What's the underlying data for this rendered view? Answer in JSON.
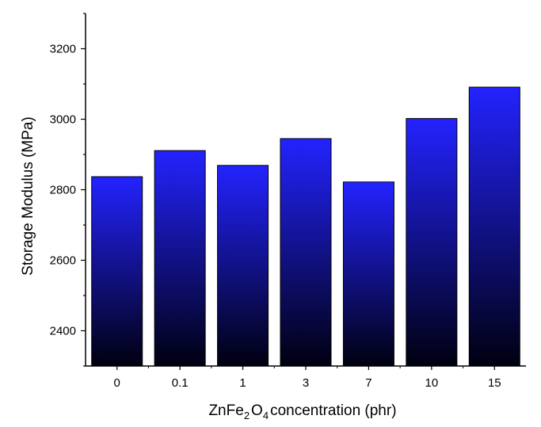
{
  "chart_data": {
    "type": "bar",
    "categories": [
      "0",
      "0.1",
      "1",
      "3",
      "7",
      "10",
      "15"
    ],
    "values": [
      2837,
      2911,
      2869,
      2945,
      2822,
      3002,
      3091
    ],
    "xlabel": {
      "parts": [
        {
          "text": "ZnFe",
          "sub": false
        },
        {
          "text": "2",
          "sub": true
        },
        {
          "text": "O",
          "sub": false
        },
        {
          "text": "4",
          "sub": true
        },
        {
          "text": "concentration (phr)",
          "sub": false
        }
      ]
    },
    "ylabel": "Storage Modulus (MPa)",
    "ylim": [
      2300,
      3300
    ],
    "yticks": [
      2400,
      2600,
      2800,
      3000,
      3200
    ],
    "ytick_labels": [
      "2400",
      "2600",
      "2800",
      "3000",
      "3200"
    ],
    "grid": false,
    "legend": "none",
    "colors": {
      "bar_top": "#2323ff",
      "bar_bottom": "#000010",
      "axis": "#000000"
    }
  }
}
